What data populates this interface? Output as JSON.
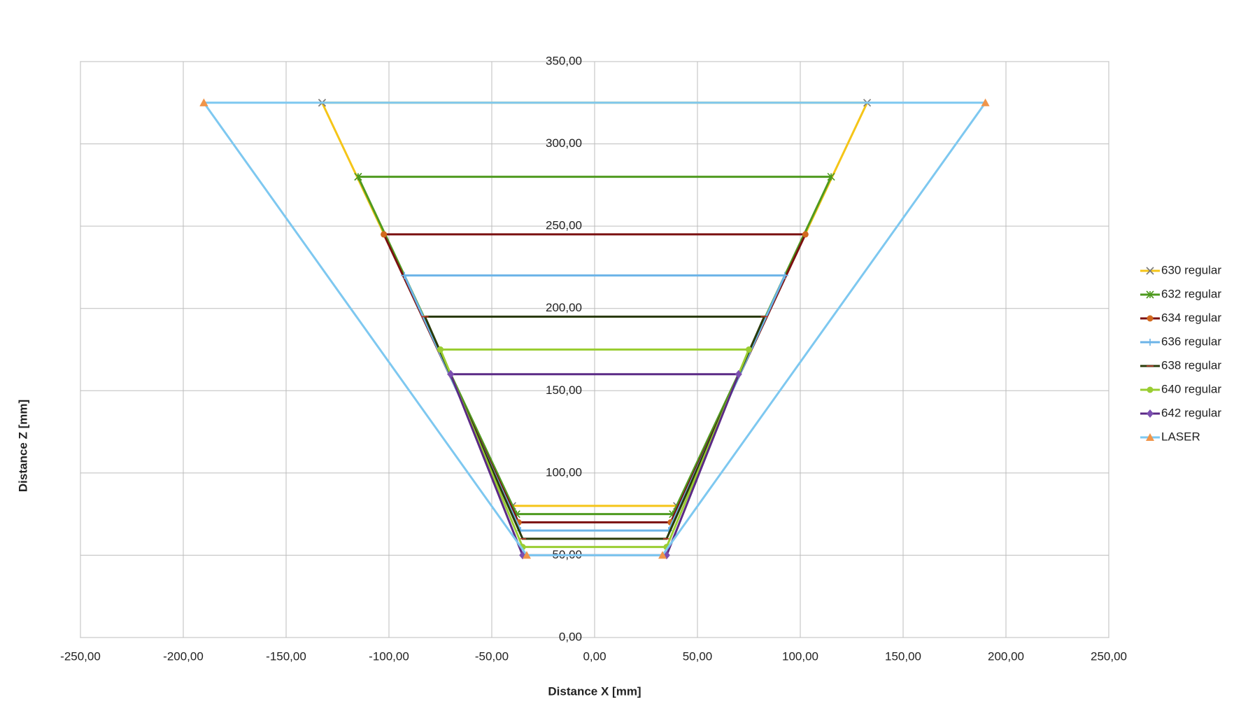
{
  "chart_data": {
    "type": "line",
    "x_label": "Distance  X [mm]",
    "y_label": "Distance  Z [mm]",
    "xlim": [
      -250,
      250
    ],
    "xticks": [
      {
        "value": -250,
        "label": "-250,00"
      },
      {
        "value": -200,
        "label": "-200,00"
      },
      {
        "value": -150,
        "label": "-150,00"
      },
      {
        "value": -100,
        "label": "-100,00"
      },
      {
        "value": -50,
        "label": "-50,00"
      },
      {
        "value": 0,
        "label": "0,00"
      },
      {
        "value": 50,
        "label": "50,00"
      },
      {
        "value": 100,
        "label": "100,00"
      },
      {
        "value": 150,
        "label": "150,00"
      },
      {
        "value": 200,
        "label": "200,00"
      },
      {
        "value": 250,
        "label": "250,00"
      }
    ],
    "ylim": [
      0,
      350
    ],
    "yticks": [
      {
        "value": 0,
        "label": "0,00"
      },
      {
        "value": 50,
        "label": "50,00"
      },
      {
        "value": 100,
        "label": "100,00"
      },
      {
        "value": 150,
        "label": "150,00"
      },
      {
        "value": 200,
        "label": "200,00"
      },
      {
        "value": 250,
        "label": "250,00"
      },
      {
        "value": 300,
        "label": "300,00"
      },
      {
        "value": 350,
        "label": "350,00"
      }
    ],
    "grid": true,
    "legend": "right",
    "series": [
      {
        "name": "630 regular",
        "color": "#f5c518",
        "marker": "x",
        "marker_color": "#7a7a7a",
        "x": [
          -132.5,
          132.5,
          40,
          -40,
          -132.5
        ],
        "y": [
          325,
          325,
          80,
          80,
          325
        ]
      },
      {
        "name": "632 regular",
        "color": "#4e9a1f",
        "marker": "star",
        "marker_color": "#4e9a1f",
        "x": [
          -115,
          115,
          38,
          -38,
          -115
        ],
        "y": [
          280,
          280,
          75,
          75,
          280
        ]
      },
      {
        "name": "634 regular",
        "color": "#7b1010",
        "marker": "circle",
        "marker_color": "#d2691e",
        "x": [
          -102.5,
          102.5,
          37,
          -37,
          -102.5
        ],
        "y": [
          245,
          245,
          70,
          70,
          245
        ]
      },
      {
        "name": "636 regular",
        "color": "#6cb4e8",
        "marker": "plus",
        "marker_color": "#6cb4e8",
        "x": [
          -92.5,
          92.5,
          36,
          -36,
          -92.5
        ],
        "y": [
          220,
          220,
          65,
          65,
          220
        ]
      },
      {
        "name": "638 regular",
        "color": "#2a3b0a",
        "marker": "dash",
        "marker_color": "#c0392b",
        "x": [
          -82.5,
          82.5,
          35,
          -35,
          -82.5
        ],
        "y": [
          195,
          195,
          60,
          60,
          195
        ]
      },
      {
        "name": "640 regular",
        "color": "#9acd32",
        "marker": "circle",
        "marker_color": "#9acd32",
        "x": [
          -75,
          75,
          35,
          -35,
          -75
        ],
        "y": [
          175,
          175,
          55,
          55,
          175
        ]
      },
      {
        "name": "642 regular",
        "color": "#5b2a86",
        "marker": "diamond",
        "marker_color": "#7b4fb0",
        "x": [
          -70,
          70,
          35,
          -35,
          -70
        ],
        "y": [
          160,
          160,
          50,
          50,
          160
        ]
      },
      {
        "name": "LASER",
        "color": "#7ec8f0",
        "marker": "triangle",
        "marker_color": "#f0954a",
        "x": [
          -190,
          190,
          33,
          -33,
          -190
        ],
        "y": [
          325,
          325,
          50,
          50,
          325
        ]
      }
    ]
  }
}
